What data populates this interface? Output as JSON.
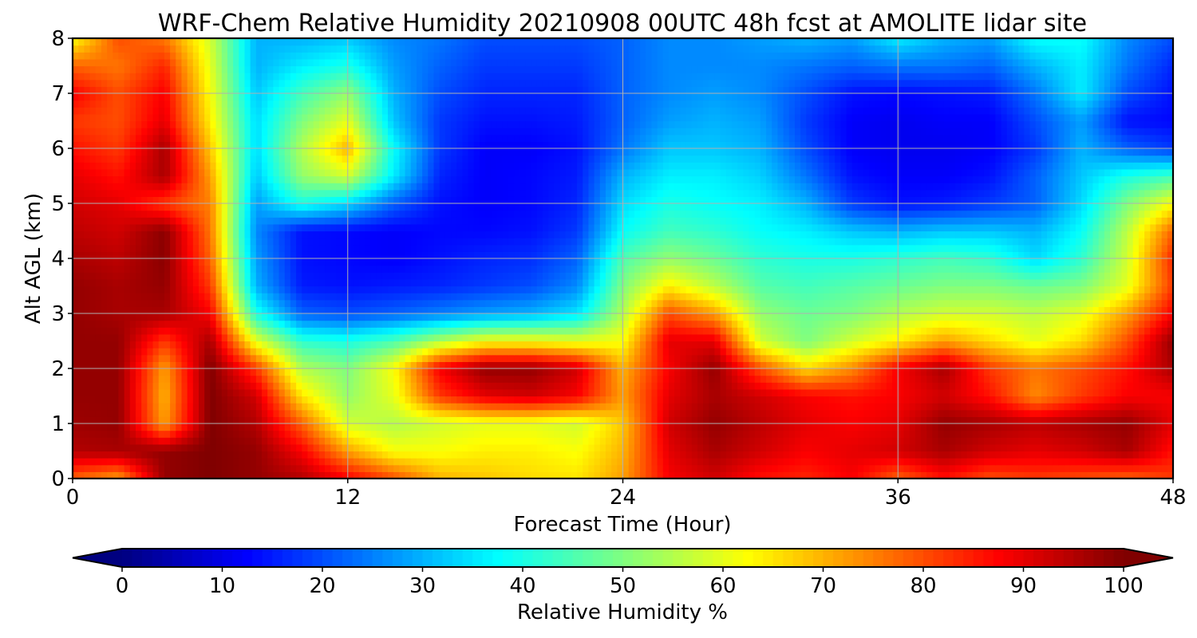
{
  "chart_data": {
    "type": "heatmap",
    "title": "WRF-Chem Relative Humidity 20210908 00UTC 48h fcst at AMOLITE lidar site",
    "xlabel": "Forecast Time (Hour)",
    "ylabel": "Alt AGL (km)",
    "xlim": [
      0,
      48
    ],
    "ylim": [
      0,
      8
    ],
    "xticks": [
      0,
      12,
      24,
      36,
      48
    ],
    "yticks": [
      0,
      1,
      2,
      3,
      4,
      5,
      6,
      7,
      8
    ],
    "grid": true,
    "z_unit": "%",
    "x": [
      0,
      2,
      4,
      6,
      8,
      10,
      12,
      14,
      16,
      18,
      20,
      22,
      24,
      26,
      28,
      30,
      32,
      34,
      36,
      38,
      40,
      42,
      44,
      46,
      48
    ],
    "y": [
      0,
      0.5,
      1,
      1.5,
      2,
      2.5,
      3,
      3.5,
      4,
      4.5,
      5,
      5.5,
      6,
      6.5,
      7,
      7.5,
      8
    ],
    "z": [
      [
        78,
        72,
        98,
        100,
        98,
        95,
        88,
        80,
        70,
        68,
        66,
        65,
        72,
        88,
        92,
        86,
        84,
        88,
        78,
        86,
        80,
        82,
        80,
        78,
        82
      ],
      [
        95,
        96,
        98,
        100,
        98,
        88,
        72,
        62,
        62,
        64,
        64,
        62,
        70,
        90,
        96,
        92,
        88,
        90,
        92,
        96,
        92,
        90,
        92,
        96,
        86
      ],
      [
        97,
        98,
        72,
        100,
        95,
        78,
        58,
        55,
        58,
        60,
        60,
        58,
        68,
        92,
        98,
        94,
        90,
        88,
        90,
        98,
        96,
        94,
        96,
        98,
        90
      ],
      [
        98,
        98,
        70,
        100,
        92,
        65,
        52,
        60,
        82,
        90,
        92,
        88,
        72,
        90,
        96,
        92,
        88,
        86,
        88,
        92,
        86,
        74,
        82,
        88,
        88
      ],
      [
        98,
        98,
        72,
        100,
        82,
        55,
        50,
        62,
        88,
        98,
        98,
        92,
        70,
        88,
        98,
        80,
        66,
        74,
        88,
        96,
        82,
        76,
        80,
        86,
        96
      ],
      [
        98,
        98,
        82,
        96,
        60,
        42,
        40,
        45,
        55,
        62,
        62,
        60,
        62,
        90,
        90,
        58,
        50,
        58,
        64,
        72,
        66,
        60,
        66,
        80,
        98
      ],
      [
        98,
        96,
        96,
        88,
        40,
        22,
        20,
        22,
        25,
        28,
        30,
        35,
        55,
        80,
        72,
        52,
        48,
        50,
        55,
        58,
        58,
        56,
        60,
        72,
        88
      ],
      [
        98,
        96,
        98,
        82,
        30,
        15,
        14,
        15,
        16,
        18,
        20,
        26,
        50,
        64,
        56,
        46,
        44,
        46,
        48,
        50,
        50,
        48,
        50,
        60,
        82
      ],
      [
        96,
        94,
        99,
        78,
        28,
        14,
        13,
        12,
        14,
        16,
        17,
        22,
        45,
        52,
        48,
        42,
        40,
        40,
        42,
        44,
        42,
        34,
        42,
        58,
        84
      ],
      [
        94,
        92,
        99,
        76,
        26,
        14,
        13,
        12,
        13,
        13,
        14,
        18,
        38,
        44,
        42,
        38,
        36,
        32,
        30,
        32,
        32,
        30,
        38,
        56,
        78
      ],
      [
        92,
        90,
        82,
        75,
        28,
        40,
        34,
        22,
        14,
        12,
        13,
        16,
        34,
        40,
        38,
        36,
        30,
        18,
        14,
        15,
        18,
        22,
        34,
        50,
        62
      ],
      [
        90,
        86,
        96,
        72,
        32,
        52,
        58,
        36,
        16,
        12,
        13,
        15,
        30,
        36,
        36,
        33,
        24,
        14,
        12,
        12,
        14,
        22,
        32,
        40,
        44
      ],
      [
        86,
        82,
        96,
        68,
        34,
        55,
        70,
        38,
        18,
        12,
        12,
        14,
        24,
        32,
        32,
        30,
        20,
        12,
        11,
        11,
        12,
        18,
        30,
        22,
        18
      ],
      [
        82,
        80,
        90,
        64,
        34,
        50,
        60,
        32,
        18,
        14,
        14,
        15,
        22,
        28,
        30,
        28,
        18,
        12,
        11,
        12,
        12,
        20,
        28,
        14,
        13
      ],
      [
        88,
        80,
        88,
        62,
        32,
        44,
        52,
        30,
        20,
        16,
        16,
        16,
        22,
        26,
        28,
        26,
        20,
        14,
        13,
        14,
        15,
        24,
        36,
        20,
        14
      ],
      [
        78,
        76,
        84,
        60,
        30,
        36,
        40,
        28,
        22,
        18,
        18,
        18,
        22,
        26,
        26,
        26,
        24,
        22,
        24,
        24,
        22,
        30,
        36,
        24,
        16
      ],
      [
        62,
        80,
        76,
        58,
        30,
        30,
        32,
        26,
        24,
        20,
        20,
        20,
        22,
        26,
        26,
        28,
        30,
        28,
        36,
        30,
        28,
        38,
        38,
        26,
        20
      ]
    ],
    "colorbar": {
      "label": "Relative Humidity %",
      "range": [
        0,
        100
      ],
      "ticks": [
        0,
        10,
        20,
        30,
        40,
        50,
        60,
        70,
        80,
        90,
        100
      ],
      "extend": "both",
      "orientation": "horizontal",
      "placement": "bottom",
      "colormap": "jet"
    }
  }
}
